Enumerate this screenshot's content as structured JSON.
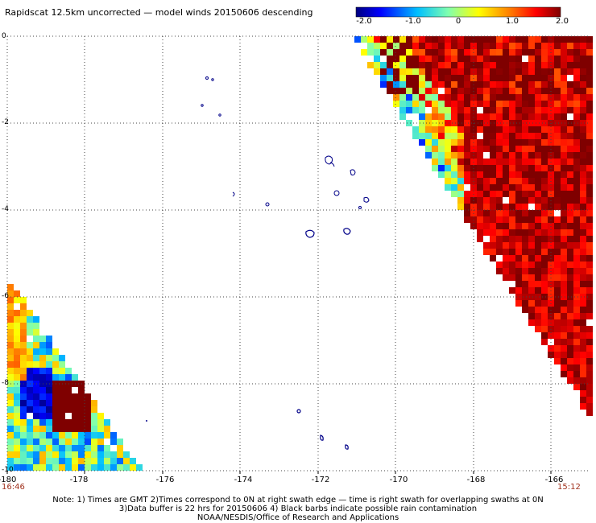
{
  "title": "Rapidscat 12.5km uncorrected — model winds 20150606 descending",
  "colorbar": {
    "ticks": [
      "-2.0",
      "-1.0",
      "0",
      "1.0",
      "2.0"
    ],
    "stops": [
      "#00007f",
      "#0000ff",
      "#00bfff",
      "#7fffaf",
      "#ffff00",
      "#ff7f00",
      "#ff0000",
      "#7f0000"
    ]
  },
  "map": {
    "lon_labels": [
      "-180",
      "-178",
      "-176",
      "-174",
      "-172",
      "-170",
      "-168",
      "-166"
    ],
    "lat_labels": [
      "0",
      "-2",
      "-4",
      "-6",
      "-8",
      "-10"
    ],
    "lon_range": [
      -180,
      -165
    ],
    "lat_range": [
      -10,
      0
    ],
    "grid": "dotted",
    "swath_value_range": [
      -2.0,
      2.0
    ]
  },
  "times": {
    "left": "16:46",
    "right": "15:12"
  },
  "notes": {
    "line1": "Note: 1) Times are GMT 2)Times correspond to 0N at right swath edge — time is right swath for overlapping swaths at 0N",
    "line2": "3)Data buffer is 22 hrs for 20150606 4) Black barbs indicate possible rain contamination",
    "line3": "NOAA/NESDIS/Office of Research and Applications"
  }
}
